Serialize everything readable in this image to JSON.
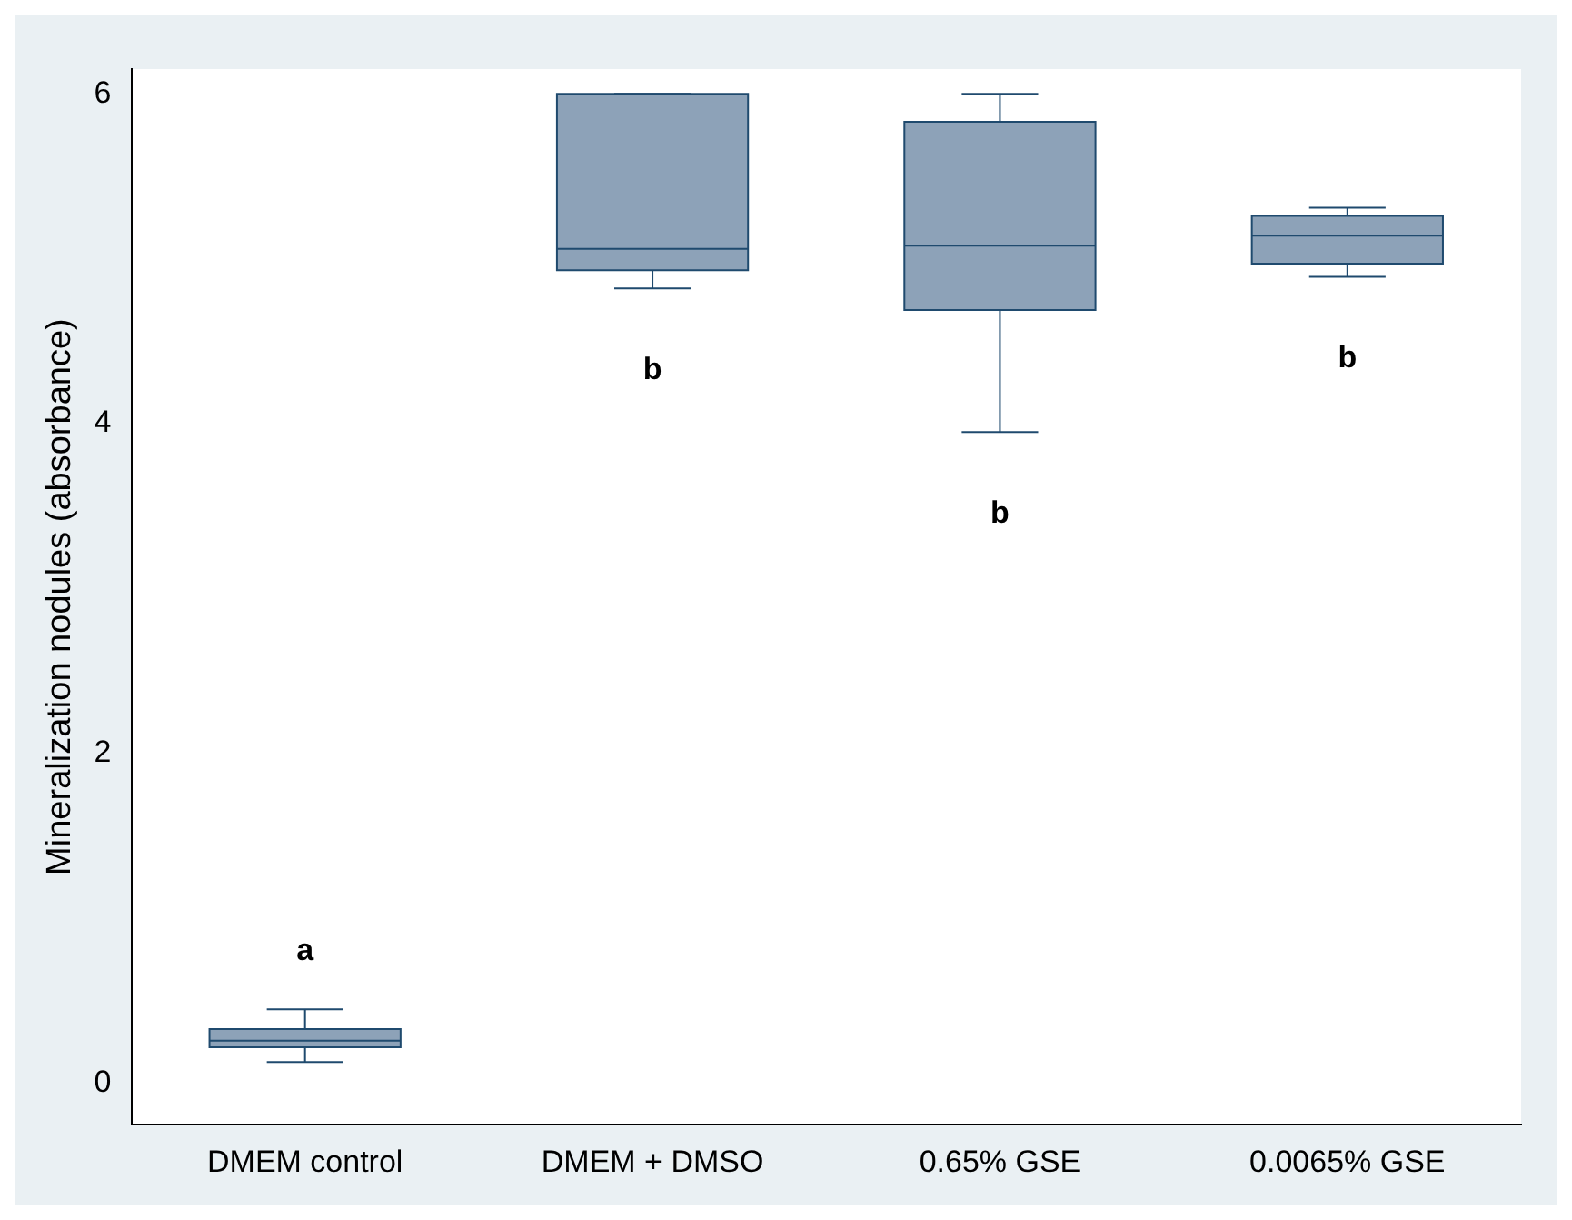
{
  "chart_data": {
    "type": "box",
    "ylabel": "Mineralization nodules (absorbance)",
    "categories": [
      "DMEM control",
      "DMEM + DMSO",
      "0.65% GSE",
      "0.0065% GSE"
    ],
    "color": "#8da2b8",
    "boxes": [
      {
        "low": 0.13,
        "q1": 0.22,
        "median": 0.26,
        "q3": 0.33,
        "high": 0.45
      },
      {
        "low": 4.82,
        "q1": 4.93,
        "median": 5.06,
        "q3": 6.0,
        "high": 6.0
      },
      {
        "low": 3.95,
        "q1": 4.69,
        "median": 5.08,
        "q3": 5.83,
        "high": 6.0
      },
      {
        "low": 4.89,
        "q1": 4.97,
        "median": 5.14,
        "q3": 5.26,
        "high": 5.31
      }
    ],
    "ylim": [
      -0.25,
      6.15
    ],
    "yticks": [
      0,
      2,
      4,
      6
    ],
    "grid": false,
    "legend": false,
    "annotations": [
      "a",
      "b",
      "b",
      "b"
    ]
  }
}
